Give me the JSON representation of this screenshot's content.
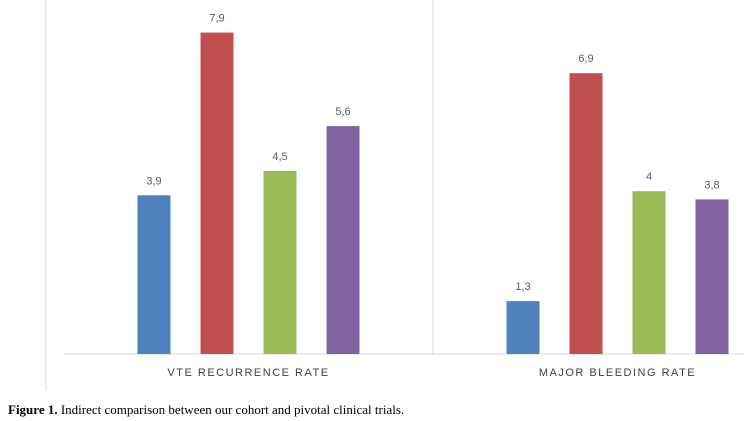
{
  "chart_data": {
    "type": "bar",
    "categories": [
      "VTE RECURRENCE RATE",
      "MAJOR BLEEDING RATE"
    ],
    "series": [
      {
        "values": [
          3.9,
          1.3
        ],
        "labels": [
          "3,9",
          "1,3"
        ],
        "color": "#4f81bd"
      },
      {
        "values": [
          7.9,
          6.9
        ],
        "labels": [
          "7,9",
          "6,9"
        ],
        "color": "#c0504d"
      },
      {
        "values": [
          4.5,
          4.0
        ],
        "labels": [
          "4,5",
          "4"
        ],
        "color": "#9bbb59"
      },
      {
        "values": [
          5.6,
          3.8
        ],
        "labels": [
          "5,6",
          "3,8"
        ],
        "color": "#8064a2"
      }
    ],
    "ylim": [
      0,
      8.7
    ],
    "grid": false,
    "legend": "none"
  },
  "caption": {
    "label": "Figure 1.",
    "text": " Indirect comparison between our cohort and  pivotal clinical trials."
  }
}
